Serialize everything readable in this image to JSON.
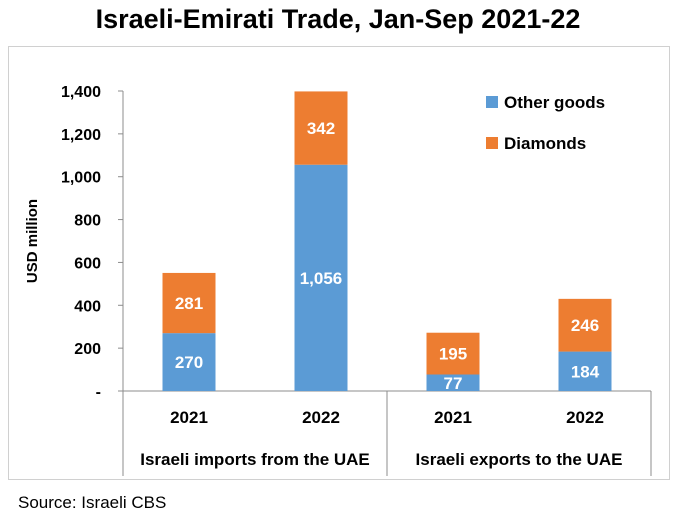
{
  "chart_data": {
    "type": "bar",
    "stacked": true,
    "title": "Israeli-Emirati Trade, Jan-Sep 2021-22",
    "ylabel": "USD million",
    "ylim": [
      0,
      1400
    ],
    "yticks": [
      0,
      200,
      400,
      600,
      800,
      1000,
      1200,
      1400
    ],
    "ytick_labels": [
      "-",
      "200",
      "400",
      "600",
      "800",
      "1,000",
      "1,200",
      "1,400"
    ],
    "categories": [
      "2021",
      "2022",
      "2021",
      "2022"
    ],
    "groups": [
      {
        "label": "Israeli imports from the UAE",
        "categories": [
          "2021",
          "2022"
        ]
      },
      {
        "label": "Israeli exports to the UAE",
        "categories": [
          "2021",
          "2022"
        ]
      }
    ],
    "series": [
      {
        "name": "Other goods",
        "color": "#5b9bd5",
        "values": [
          270,
          1056,
          77,
          184
        ],
        "labels": [
          "270",
          "1,056",
          "77",
          "184"
        ]
      },
      {
        "name": "Diamonds",
        "color": "#ed7d31",
        "values": [
          281,
          342,
          195,
          246
        ],
        "labels": [
          "281",
          "342",
          "195",
          "246"
        ]
      }
    ],
    "legend": "top-right",
    "grid": false
  },
  "source": "Source: Israeli CBS"
}
